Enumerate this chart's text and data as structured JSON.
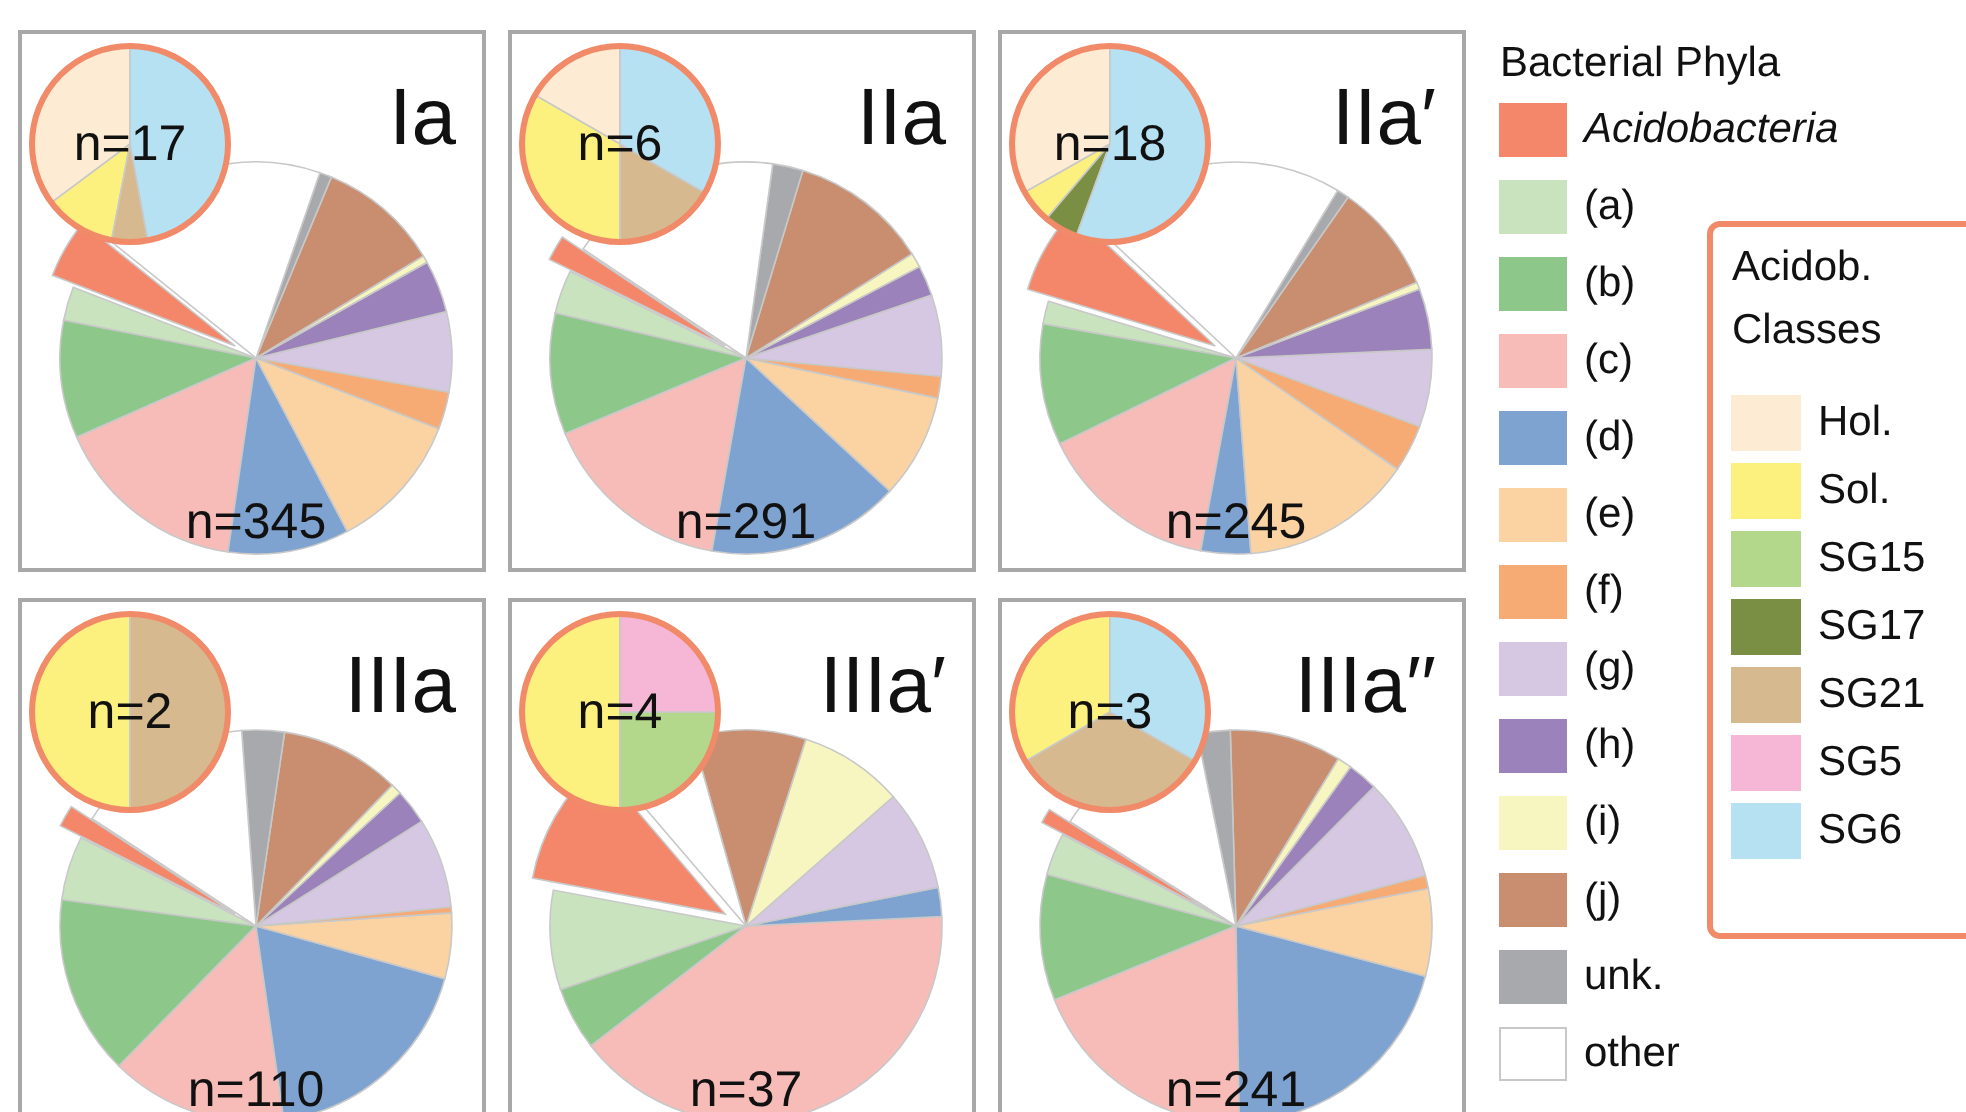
{
  "chart_data": [
    {
      "type": "pie",
      "title": "Ia",
      "legend": "right",
      "legend_title": "Bacterial Phyla",
      "categories": [
        "Acidobacteria",
        "(a)",
        "(b)",
        "(c)",
        "(d)",
        "(e)",
        "(f)",
        "(g)",
        "(h)",
        "(i)",
        "(j)",
        "unk.",
        "other"
      ],
      "values": [
        4.9,
        2.8,
        9.7,
        16.1,
        10,
        11.4,
        3.1,
        6.6,
        4.3,
        0.6,
        10,
        1,
        19.5
      ],
      "colors": [
        "#f4876a",
        "#c9e3bf",
        "#8dc88a",
        "#f7bcb8",
        "#7fa3d0",
        "#fbd3a2",
        "#f7ab74",
        "#d6c8e2",
        "#9b82ba",
        "#f7f5c0",
        "#c88e6f",
        "#a7a9ac",
        "#ffffff"
      ],
      "annotations": [
        "n=345"
      ]
    },
    {
      "type": "pie",
      "legend": "right",
      "legend_title": "Acidob. Classes",
      "categories": [
        "Hol.",
        "Sol.",
        "SG15",
        "SG17",
        "SG21",
        "SG5",
        "SG6"
      ],
      "values": [
        35.2,
        11.8,
        0,
        0,
        5.9,
        0,
        47.1
      ],
      "colors": [
        "#fdebd3",
        "#fcf07e",
        "#b3d88c",
        "#7a8f44",
        "#d6b98f",
        "#f6b7d6",
        "#b5e1f2"
      ],
      "annotations": [
        "n=17"
      ]
    },
    {
      "type": "pie",
      "title": "IIa",
      "values": [
        2.1,
        3.6,
        10,
        15.9,
        15.9,
        8.6,
        1.8,
        6.7,
        2.5,
        1.2,
        11.4,
        2.5,
        17.8
      ],
      "colors": [
        "#f4876a",
        "#c9e3bf",
        "#8dc88a",
        "#f7bcb8",
        "#7fa3d0",
        "#fbd3a2",
        "#f7ab74",
        "#d6c8e2",
        "#9b82ba",
        "#f7f5c0",
        "#c88e6f",
        "#a7a9ac",
        "#ffffff"
      ],
      "annotations": [
        "n=291"
      ]
    },
    {
      "type": "pie",
      "values": [
        16.7,
        33.3,
        0,
        0,
        16.7,
        0,
        33.3
      ],
      "colors": [
        "#fdebd3",
        "#fcf07e",
        "#b3d88c",
        "#7a8f44",
        "#d6b98f",
        "#f6b7d6",
        "#b5e1f2"
      ],
      "annotations": [
        "n=6"
      ]
    },
    {
      "type": "pie",
      "title": "IIa′",
      "values": [
        7.3,
        1.9,
        10,
        14.9,
        4.1,
        14.2,
        3.9,
        6.4,
        5,
        0.6,
        9,
        1,
        21.7
      ],
      "colors": [
        "#f4876a",
        "#c9e3bf",
        "#8dc88a",
        "#f7bcb8",
        "#7fa3d0",
        "#fbd3a2",
        "#f7ab74",
        "#d6c8e2",
        "#9b82ba",
        "#f7f5c0",
        "#c88e6f",
        "#a7a9ac",
        "#ffffff"
      ],
      "annotations": [
        "n=245"
      ]
    },
    {
      "type": "pie",
      "values": [
        33.2,
        5.6,
        0,
        5.6,
        0,
        0,
        55.6
      ],
      "colors": [
        "#fdebd3",
        "#fcf07e",
        "#b3d88c",
        "#7a8f44",
        "#d6b98f",
        "#f6b7d6",
        "#b5e1f2"
      ],
      "annotations": [
        "n=18"
      ]
    },
    {
      "type": "pie",
      "title": "IIIa",
      "values": [
        1.8,
        5.3,
        14.8,
        14.6,
        18.4,
        5.4,
        0.5,
        7.4,
        2.9,
        0.9,
        9.9,
        3.5,
        14.6
      ],
      "colors": [
        "#f4876a",
        "#c9e3bf",
        "#8dc88a",
        "#f7bcb8",
        "#7fa3d0",
        "#fbd3a2",
        "#f7ab74",
        "#d6c8e2",
        "#9b82ba",
        "#f7f5c0",
        "#c88e6f",
        "#a7a9ac",
        "#ffffff"
      ],
      "annotations": [
        "n=110"
      ]
    },
    {
      "type": "pie",
      "values": [
        0,
        50,
        0,
        0,
        50,
        0,
        0
      ],
      "colors": [
        "#fdebd3",
        "#fcf07e",
        "#b3d88c",
        "#7a8f44",
        "#d6b98f",
        "#f6b7d6",
        "#b5e1f2"
      ],
      "annotations": [
        "n=2"
      ]
    },
    {
      "type": "pie",
      "title": "IIIa′",
      "values": [
        10.8,
        8.2,
        5.2,
        40.3,
        2.4,
        0,
        0,
        8.3,
        0,
        8.6,
        9.3,
        0,
        6.9
      ],
      "colors": [
        "#f4876a",
        "#c9e3bf",
        "#8dc88a",
        "#f7bcb8",
        "#7fa3d0",
        "#fbd3a2",
        "#f7ab74",
        "#d6c8e2",
        "#9b82ba",
        "#f7f5c0",
        "#c88e6f",
        "#a7a9ac",
        "#ffffff"
      ],
      "annotations": [
        "n=37"
      ]
    },
    {
      "type": "pie",
      "values": [
        0,
        50,
        25,
        0,
        0,
        25,
        0
      ],
      "colors": [
        "#fdebd3",
        "#fcf07e",
        "#b3d88c",
        "#7a8f44",
        "#d6b98f",
        "#f6b7d6",
        "#b5e1f2"
      ],
      "annotations": [
        "n=4"
      ]
    },
    {
      "type": "pie",
      "title": "IIIa′′",
      "values": [
        1.2,
        3.5,
        10.4,
        19.1,
        20.6,
        7.2,
        1.1,
        8.4,
        2.5,
        1.2,
        9.2,
        2.7,
        12.9
      ],
      "colors": [
        "#f4876a",
        "#c9e3bf",
        "#8dc88a",
        "#f7bcb8",
        "#7fa3d0",
        "#fbd3a2",
        "#f7ab74",
        "#d6c8e2",
        "#9b82ba",
        "#f7f5c0",
        "#c88e6f",
        "#a7a9ac",
        "#ffffff"
      ],
      "annotations": [
        "n=241"
      ]
    },
    {
      "type": "pie",
      "values": [
        0,
        33.4,
        0,
        0,
        33.3,
        0,
        33.3
      ],
      "colors": [
        "#fdebd3",
        "#fcf07e",
        "#b3d88c",
        "#7a8f44",
        "#d6b98f",
        "#f6b7d6",
        "#b5e1f2"
      ],
      "annotations": [
        "n=3"
      ]
    }
  ]
}
